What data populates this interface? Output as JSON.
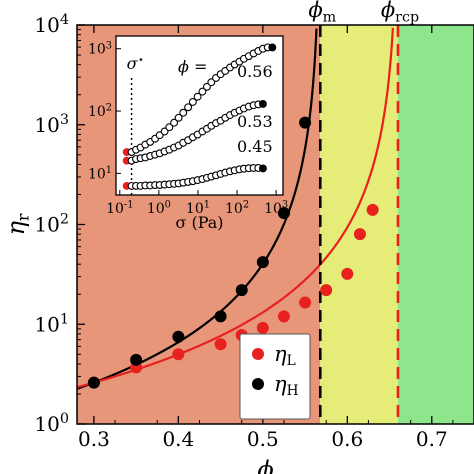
{
  "chart_data": [
    {
      "type": "scatter",
      "xlabel": "ϕ",
      "ylabel": "η_r",
      "xlim": [
        0.28,
        0.75
      ],
      "ylim": [
        1,
        10000
      ],
      "yscale": "log",
      "x_ticks": [
        "0.3",
        "0.4",
        "0.5",
        "0.6",
        "0.7"
      ],
      "y_ticks": [
        "10^0",
        "10^1",
        "10^2",
        "10^3",
        "10^4"
      ],
      "regions": [
        {
          "from": 0.28,
          "to": 0.568,
          "color": "#e8967a"
        },
        {
          "from": 0.568,
          "to": 0.66,
          "color": "#e6ec78"
        },
        {
          "from": 0.66,
          "to": 0.75,
          "color": "#8de68b"
        }
      ],
      "annotations": [
        {
          "label": "ϕ_m",
          "x": 0.568,
          "color": "#000000"
        },
        {
          "label": "ϕ_rcp",
          "x": 0.66,
          "color": "#e8201e"
        }
      ],
      "series": [
        {
          "name": "η_L",
          "color": "#e8201e",
          "x": [
            0.3,
            0.35,
            0.4,
            0.45,
            0.475,
            0.5,
            0.525,
            0.55,
            0.575,
            0.6,
            0.615,
            0.63
          ],
          "y": [
            2.6,
            3.7,
            5.0,
            6.3,
            7.8,
            9.2,
            12.0,
            16.5,
            22.0,
            32.0,
            80.0,
            140.0
          ]
        },
        {
          "name": "η_H",
          "color": "#000000",
          "x": [
            0.3,
            0.35,
            0.4,
            0.45,
            0.475,
            0.5,
            0.525,
            0.55
          ],
          "y": [
            2.6,
            4.4,
            7.5,
            12.0,
            22.0,
            42.0,
            130.0,
            1050.0
          ]
        }
      ],
      "fit_lines": [
        {
          "color": "#000000",
          "phi_c": 0.568
        },
        {
          "color": "#e8201e",
          "phi_c": 0.66
        }
      ],
      "legend_placement": "bottom-right"
    },
    {
      "type": "scatter",
      "xlabel": "σ (Pa)",
      "ylabel": "",
      "xlim": [
        0.08,
        1500
      ],
      "ylim": [
        4.5,
        1600
      ],
      "xscale": "log",
      "yscale": "log",
      "x_ticks": [
        "10^-1",
        "10^0",
        "10^1",
        "10^2",
        "10^3"
      ],
      "y_ticks": [
        "10^1",
        "10^2",
        "10^3"
      ],
      "sigma_star": 0.2,
      "sigma_star_label": "σ^⋆",
      "phi_label": "ϕ =",
      "series": [
        {
          "name": "0.56",
          "x": [
            0.15,
            0.2,
            0.26,
            0.34,
            0.45,
            0.6,
            0.8,
            1.05,
            1.4,
            1.85,
            2.45,
            3.2,
            4.2,
            5.6,
            7.4,
            9.8,
            13,
            17,
            22,
            29,
            38,
            50,
            66,
            87,
            115,
            150,
            200,
            265,
            350,
            460,
            610,
            800
          ],
          "y": [
            22,
            22,
            24,
            26,
            29,
            32,
            36,
            41,
            47,
            55,
            65,
            78,
            94,
            115,
            140,
            170,
            205,
            245,
            290,
            340,
            390,
            440,
            500,
            560,
            620,
            690,
            760,
            840,
            920,
            1000,
            1050,
            1050
          ]
        },
        {
          "name": "0.53",
          "x": [
            0.15,
            0.2,
            0.26,
            0.34,
            0.45,
            0.6,
            0.8,
            1.05,
            1.4,
            1.85,
            2.45,
            3.2,
            4.2,
            5.6,
            7.4,
            9.8,
            13,
            17,
            22,
            29,
            38,
            50,
            66,
            87,
            115,
            150,
            200,
            265,
            350,
            460
          ],
          "y": [
            16,
            16,
            17,
            17.5,
            18,
            19,
            20,
            21,
            22.5,
            24,
            26,
            28,
            31,
            34,
            38,
            42,
            47,
            52,
            58,
            64,
            70,
            78,
            86,
            94,
            102,
            110,
            118,
            124,
            128,
            130
          ]
        },
        {
          "name": "0.45",
          "x": [
            0.15,
            0.2,
            0.26,
            0.34,
            0.45,
            0.6,
            0.8,
            1.05,
            1.4,
            1.85,
            2.45,
            3.2,
            4.2,
            5.6,
            7.4,
            9.8,
            13,
            17,
            22,
            29,
            38,
            50,
            66,
            87,
            115,
            150,
            200,
            265,
            350,
            460
          ],
          "y": [
            6.3,
            6.3,
            6.3,
            6.3,
            6.4,
            6.4,
            6.5,
            6.5,
            6.6,
            6.7,
            6.8,
            6.9,
            7.1,
            7.3,
            7.5,
            7.8,
            8.1,
            8.5,
            8.9,
            9.3,
            9.8,
            10.3,
            10.8,
            11.2,
            11.6,
            11.9,
            12.1,
            12.2,
            12.2,
            12.0
          ]
        }
      ]
    }
  ]
}
